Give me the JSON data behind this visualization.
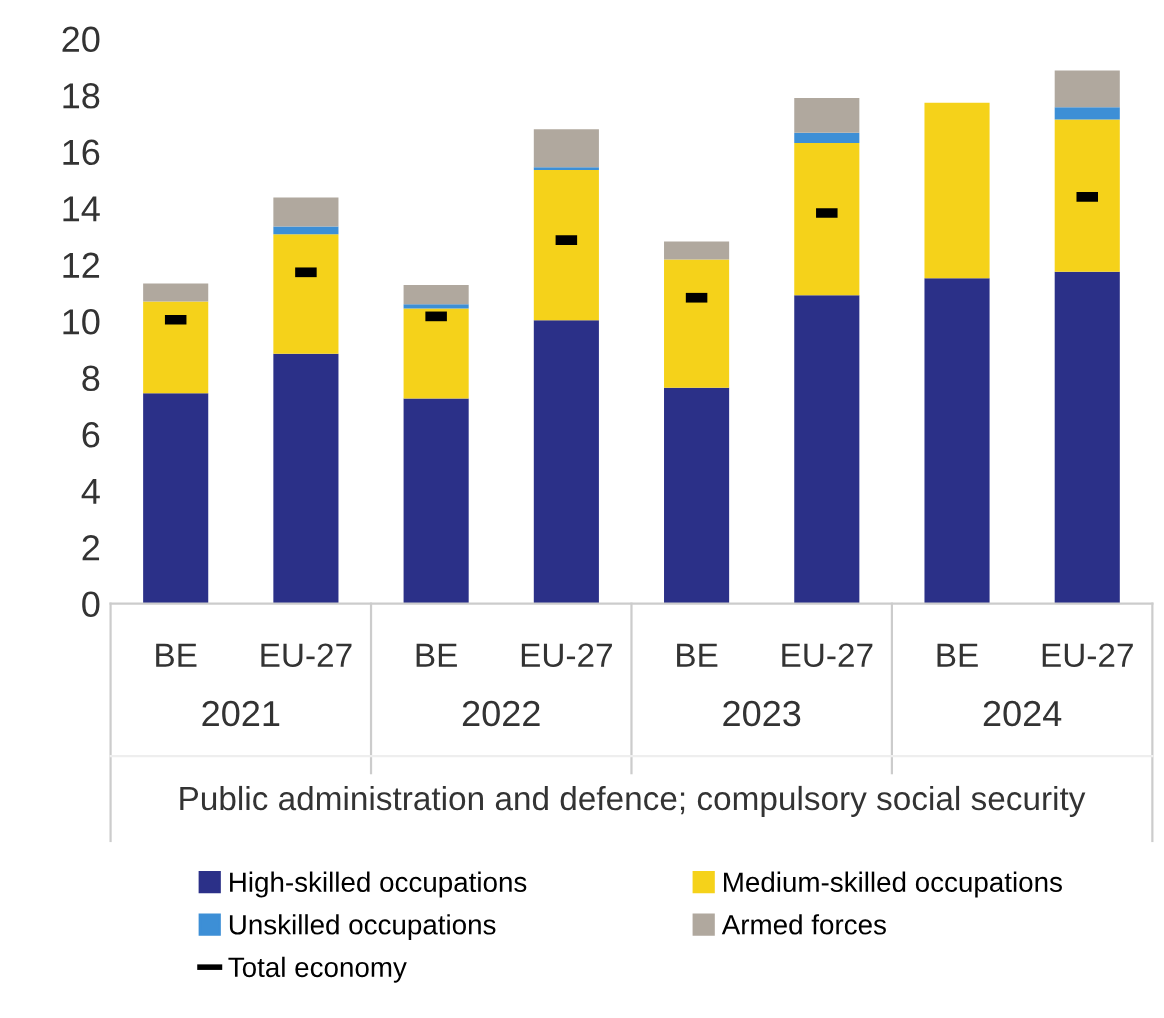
{
  "chart_data": {
    "type": "bar",
    "stacked": true,
    "categories": [
      "BE",
      "EU-27",
      "BE",
      "EU-27",
      "BE",
      "EU-27",
      "BE",
      "EU-27"
    ],
    "annotations": [
      "2021",
      "2022",
      "2023",
      "2024"
    ],
    "xlabel": "Public administration and defence; compulsory social security",
    "series": [
      {
        "name": "High-skilled occupations",
        "color": "#2b3088",
        "values": [
          7.45,
          8.85,
          7.26,
          10.03,
          7.64,
          10.92,
          11.52,
          11.75
        ]
      },
      {
        "name": "Medium-skilled occupations",
        "color": "#f5d21a",
        "values": [
          3.25,
          4.23,
          3.19,
          5.32,
          4.54,
          5.39,
          6.21,
          5.39
        ]
      },
      {
        "name": "Unskilled occupations",
        "color": "#3d8fd6",
        "values": [
          null,
          0.27,
          0.15,
          0.1,
          null,
          0.36,
          null,
          0.43
        ]
      },
      {
        "name": "Armed forces",
        "color": "#b0a89e",
        "values": [
          0.63,
          1.03,
          0.68,
          1.34,
          0.64,
          1.23,
          null,
          1.3
        ]
      },
      {
        "name": "Total economy",
        "type": "scatter",
        "color": "#000000",
        "values": [
          10.05,
          11.73,
          10.17,
          12.87,
          10.83,
          13.83,
          null,
          14.4
        ]
      }
    ],
    "ylim": [
      0,
      20
    ],
    "yticks": [
      0,
      2,
      4,
      6,
      8,
      10,
      12,
      14,
      16,
      18,
      20
    ],
    "grid": false,
    "legend": "bottom"
  }
}
